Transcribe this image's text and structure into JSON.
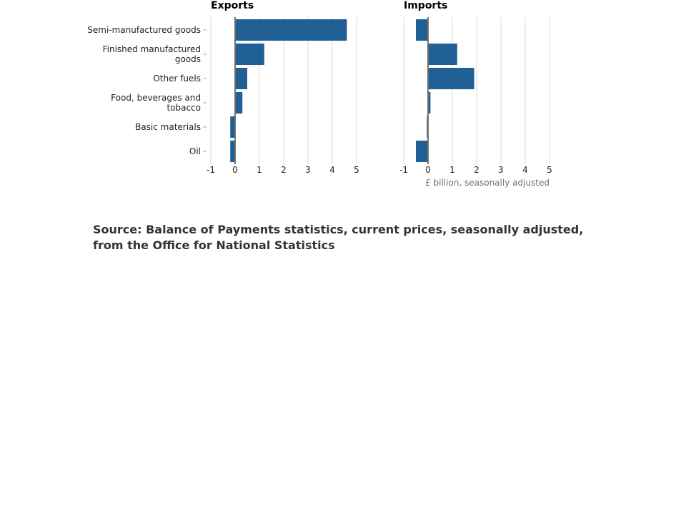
{
  "chart_data": {
    "type": "bar",
    "orientation": "horizontal",
    "categories": [
      [
        "Semi-manufactured goods"
      ],
      [
        "Finished manufactured",
        "goods"
      ],
      [
        "Other fuels"
      ],
      [
        "Food, beverages and",
        "tobacco"
      ],
      [
        "Basic materials"
      ],
      [
        "Oil"
      ]
    ],
    "panels": [
      {
        "title": "Exports",
        "values": [
          4.6,
          1.2,
          0.5,
          0.3,
          -0.2,
          -0.2
        ]
      },
      {
        "title": "Imports",
        "values": [
          -0.5,
          1.2,
          1.9,
          0.1,
          -0.05,
          -0.5
        ]
      }
    ],
    "xticks": [
      -1,
      0,
      1,
      2,
      3,
      4,
      5
    ],
    "xlim": [
      -1,
      5
    ],
    "xlabel": "£ billion, seasonally adjusted",
    "grid": true,
    "colors": {
      "bar": "#206095",
      "grid": "#d9d9d9",
      "zero": "#707070"
    }
  },
  "source": "Source: Balance of Payments statistics, current prices, seasonally adjusted, from the Office for National Statistics"
}
